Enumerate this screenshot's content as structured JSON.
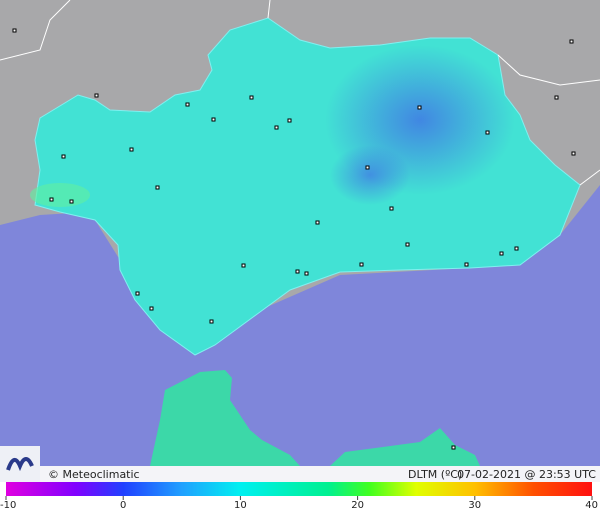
{
  "footer": {
    "credit": "© Meteoclimatic",
    "variable": "DLTM (ºC)",
    "timestamp": "07-02-2021 @ 23:53 UTC"
  },
  "color_scale": {
    "range": [
      -10,
      40
    ],
    "ticks": [
      -10,
      0,
      10,
      20,
      30,
      40
    ]
  }
}
